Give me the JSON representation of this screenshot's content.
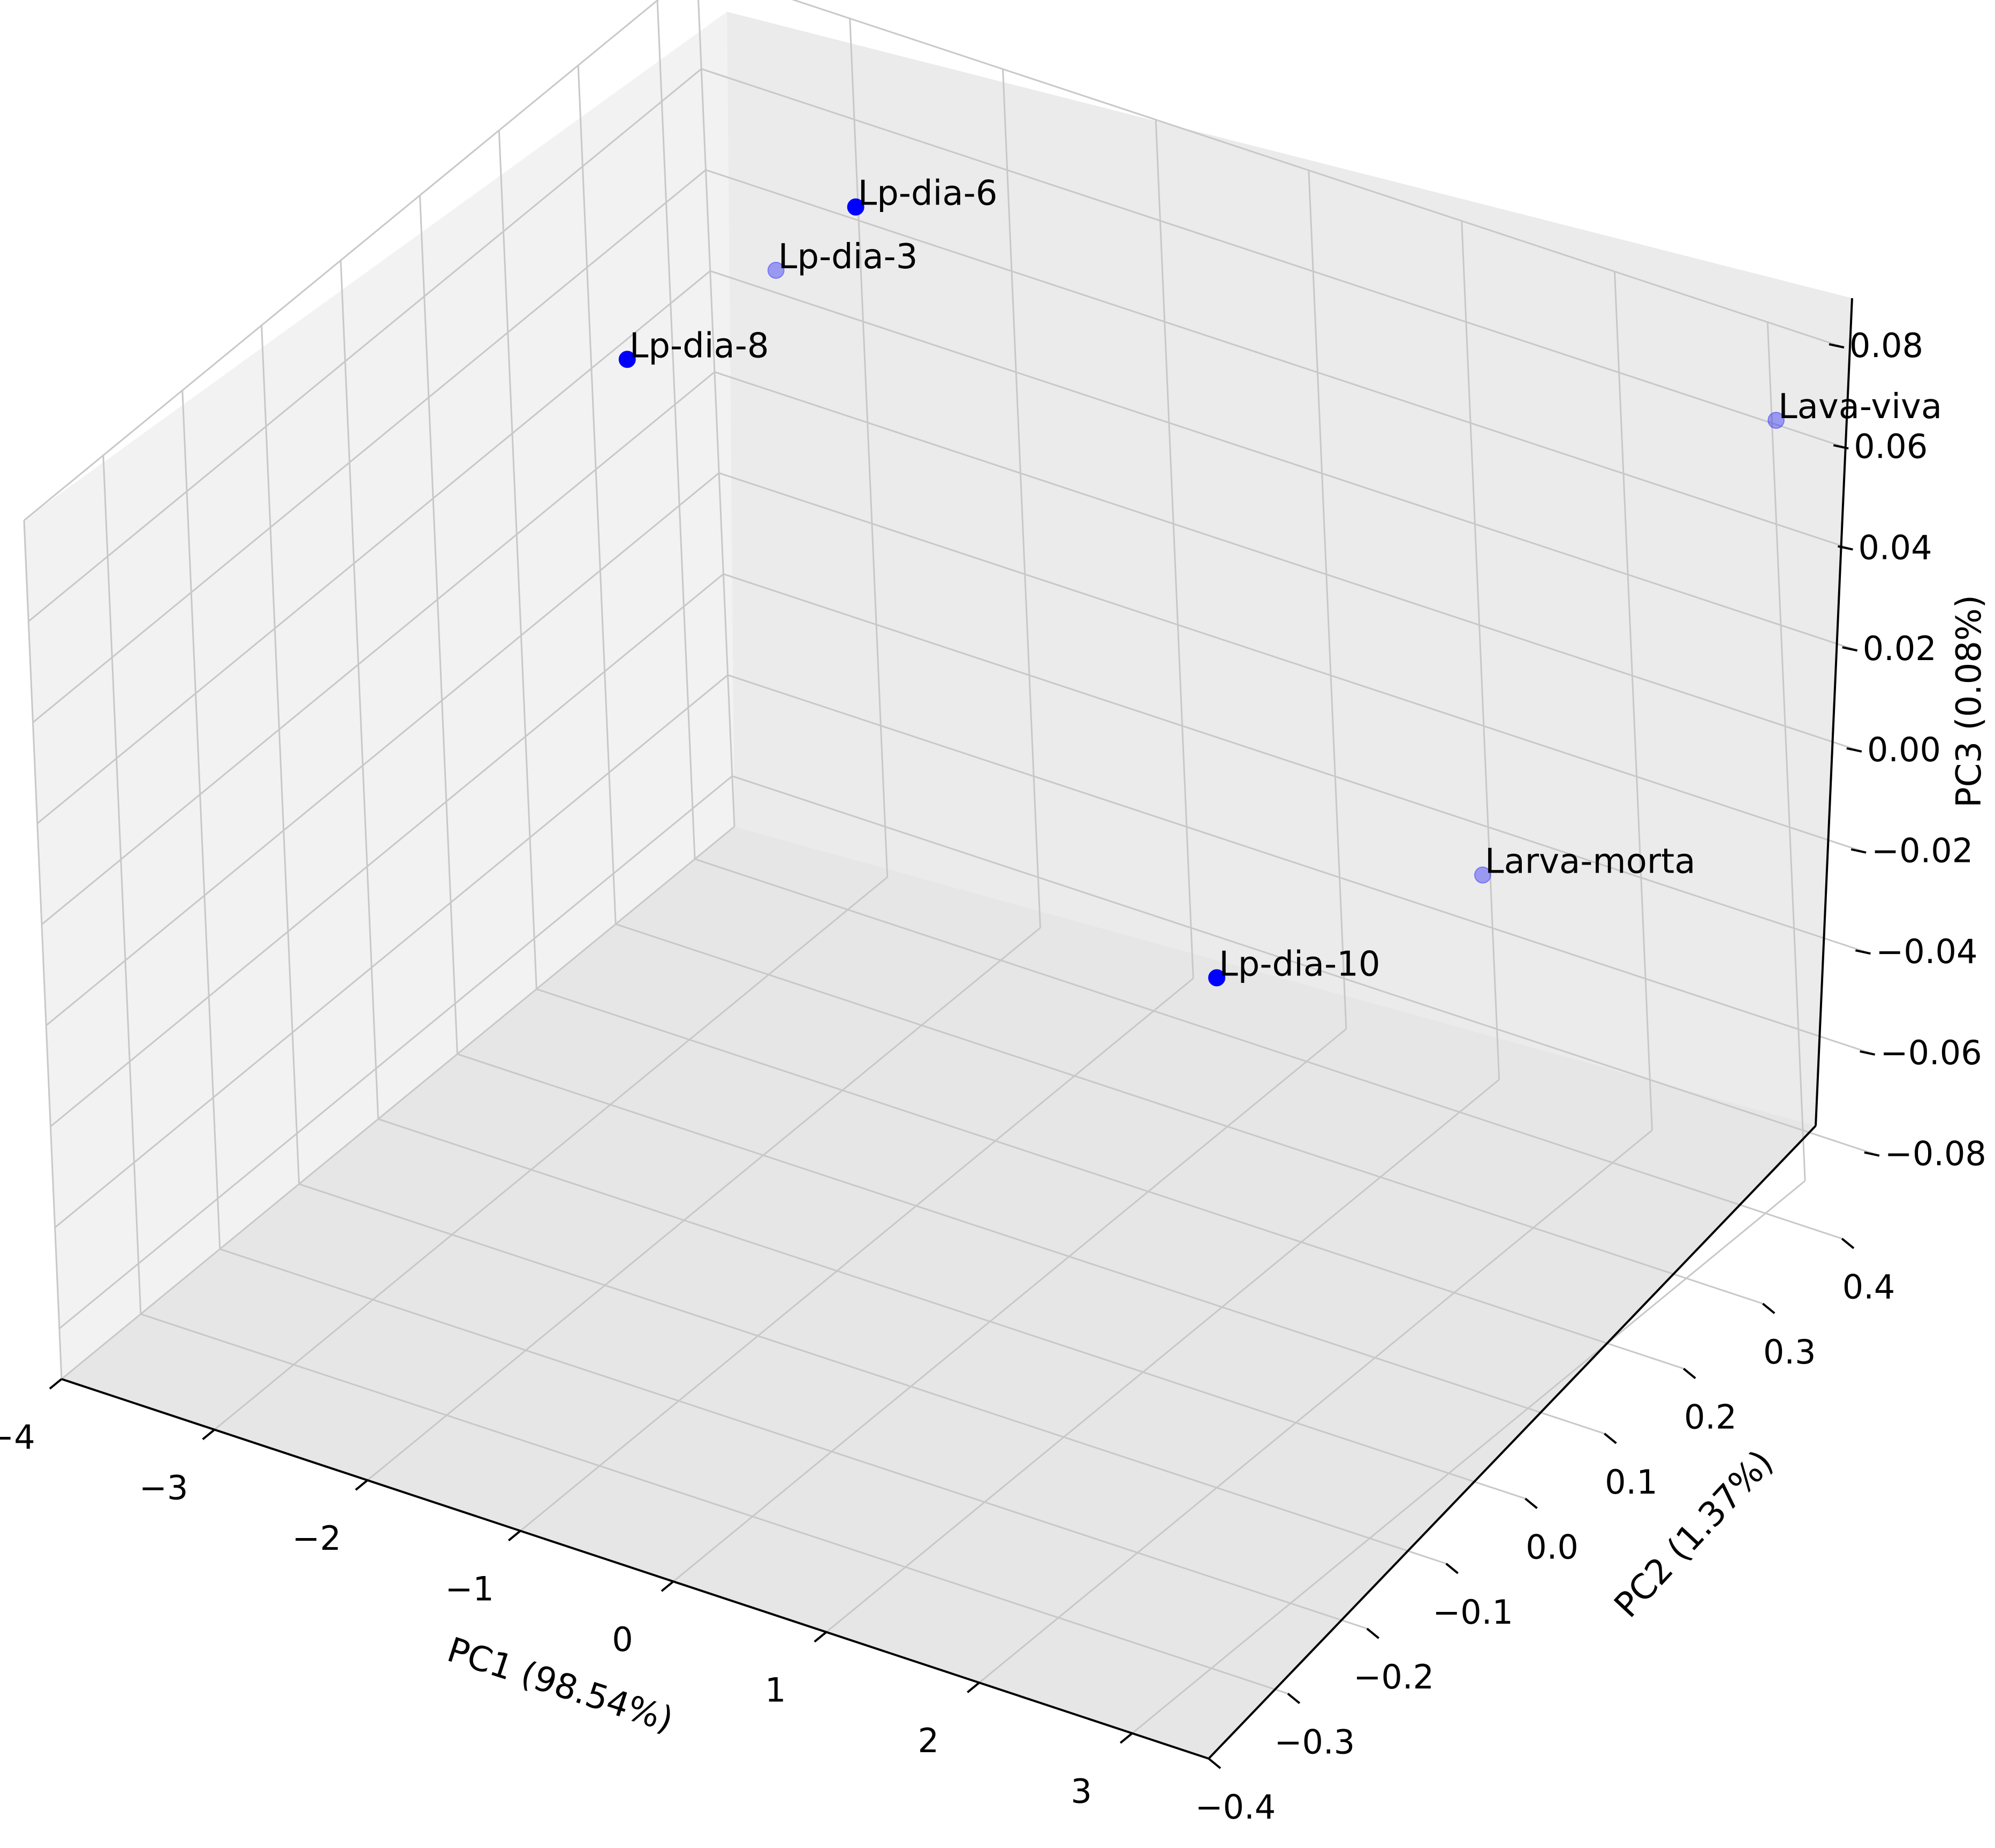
{
  "chart_data": {
    "type": "scatter",
    "projection": "3d",
    "title": "",
    "xlabel": "PC1 (98.54%)",
    "ylabel": "PC2 (1.37%)",
    "zlabel": "PC3 (0.08%)",
    "xlim": [
      -4,
      3.5
    ],
    "ylim": [
      -0.4,
      0.45
    ],
    "zlim": [
      -0.09,
      0.08
    ],
    "grid": true,
    "x_ticks": [
      "−4",
      "−3",
      "−2",
      "−1",
      "0",
      "1",
      "2",
      "3"
    ],
    "y_ticks": [
      "−0.4",
      "−0.3",
      "−0.2",
      "−0.1",
      "0.0",
      "0.1",
      "0.2",
      "0.3",
      "0.4"
    ],
    "z_ticks": [
      "−0.08",
      "−0.06",
      "−0.04",
      "−0.02",
      "0.00",
      "0.02",
      "0.04",
      "0.06",
      "0.08"
    ],
    "marker_color": "#0000ff",
    "points": [
      {
        "label": "Lava-viva",
        "x": 3.3,
        "y": 0.4,
        "z": 0.07
      },
      {
        "label": "Lp-dia-6",
        "x": -2.2,
        "y": 0.3,
        "z": 0.07
      },
      {
        "label": "Lp-dia-8",
        "x": -2.4,
        "y": 0.05,
        "z": 0.07
      },
      {
        "label": "Lp-dia-3",
        "x": -3.4,
        "y": 0.42,
        "z": 0.03
      },
      {
        "label": "Lp-dia-10",
        "x": -0.3,
        "y": 0.35,
        "z": -0.07
      },
      {
        "label": "Larva-morta",
        "x": 0.95,
        "y": 0.45,
        "z": -0.05
      }
    ]
  }
}
